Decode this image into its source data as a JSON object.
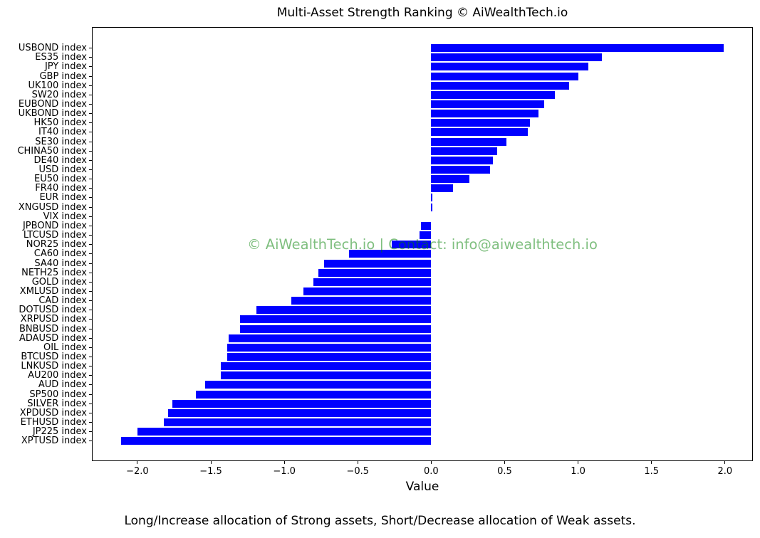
{
  "title": "Multi-Asset Strength Ranking © AiWealthTech.io",
  "watermark": "© AiWealthTech.io | Contact: info@aiwealthtech.io",
  "caption": "Long/Increase allocation of Strong assets, Short/Decrease allocation of Weak assets.",
  "chart_data": {
    "type": "bar",
    "orientation": "horizontal",
    "title": "Multi-Asset Strength Ranking © AiWealthTech.io",
    "xlabel": "Value",
    "ylabel": "",
    "xlim": [
      -2.31,
      2.19
    ],
    "xticks": [
      -2.0,
      -1.5,
      -1.0,
      -0.5,
      0.0,
      0.5,
      1.0,
      1.5,
      2.0
    ],
    "grid": false,
    "legend": "none",
    "bar_color": "#0000FF",
    "watermark_color": "rgba(0,128,0,0.5)",
    "categories": [
      "USBOND index",
      "ES35 index",
      "JPY index",
      "GBP index",
      "UK100 index",
      "SW20 index",
      "EUBOND index",
      "UKBOND index",
      "HK50 index",
      "IT40 index",
      "SE30 index",
      "CHINA50 index",
      "DE40 index",
      "USD index",
      "EU50 index",
      "FR40 index",
      "EUR index",
      "XNGUSD index",
      "VIX index",
      "JPBOND index",
      "LTCUSD index",
      "NOR25 index",
      "CA60 index",
      "SA40 index",
      "NETH25 index",
      "GOLD index",
      "XMLUSD index",
      "CAD index",
      "DOTUSD index",
      "XRPUSD index",
      "BNBUSD index",
      "ADAUSD index",
      "OIL index",
      "BTCUSD index",
      "LNKUSD index",
      "AU200 index",
      "AUD index",
      "SP500 index",
      "SILVER index",
      "XPDUSD index",
      "ETHUSD index",
      "JP225 index",
      "XPTUSD index"
    ],
    "values": [
      1.99,
      1.16,
      1.07,
      1.0,
      0.94,
      0.84,
      0.77,
      0.73,
      0.67,
      0.66,
      0.51,
      0.45,
      0.42,
      0.4,
      0.26,
      0.15,
      0.01,
      0.01,
      0.0,
      -0.07,
      -0.08,
      -0.27,
      -0.56,
      -0.73,
      -0.77,
      -0.8,
      -0.87,
      -0.95,
      -1.19,
      -1.3,
      -1.3,
      -1.38,
      -1.39,
      -1.39,
      -1.43,
      -1.43,
      -1.54,
      -1.6,
      -1.76,
      -1.79,
      -1.82,
      -2.0,
      -2.11
    ]
  }
}
